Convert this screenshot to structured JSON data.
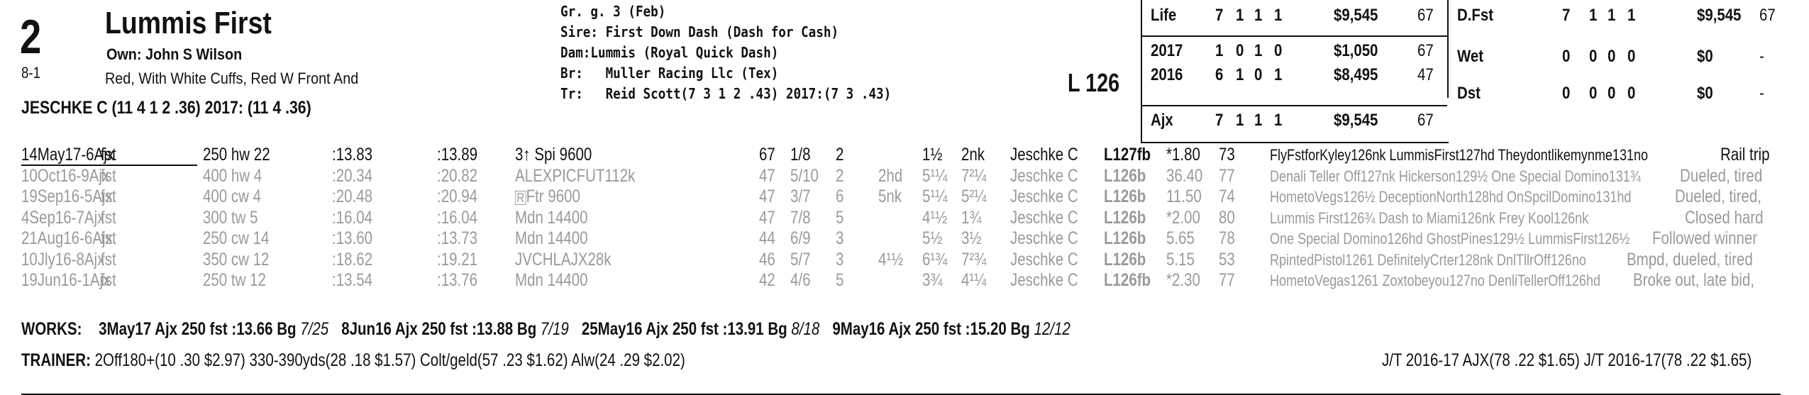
{
  "header": {
    "program_number": "2",
    "horse_name": "Lummis First",
    "owner": "Own: John S Wilson",
    "morning_line": "8-1",
    "silks": "Red, With White Cuffs, Red W Front And",
    "jockey": "JESCHKE C (11 4 1 2 .36) 2017: (11 4 .36)"
  },
  "pedigree": {
    "sex_age": "Gr. g. 3 (Feb)",
    "sire": "Sire: First Down Dash (Dash for Cash)",
    "dam_label": "Dam:",
    "dam": "Lummis (Royal Quick Dash)",
    "breeder_label": "Br:",
    "breeder": "Muller Racing Llc (Tex)",
    "trainer_label": "Tr:",
    "trainer": "Reid Scott(7 3 1 2 .43)  2017:(7 3 .43)"
  },
  "weight": "L 126",
  "stats_left": [
    {
      "label": "Life",
      "st": "7",
      "w": "1",
      "p": "1",
      "s": "1",
      "earn": "$9,545",
      "speed": "67"
    },
    {
      "label": "2017",
      "st": "1",
      "w": "0",
      "p": "1",
      "s": "0",
      "earn": "$1,050",
      "speed": "67"
    },
    {
      "label": "2016",
      "st": "6",
      "w": "1",
      "p": "0",
      "s": "1",
      "earn": "$8,495",
      "speed": "47"
    },
    {
      "label": "Ajx",
      "st": "7",
      "w": "1",
      "p": "1",
      "s": "1",
      "earn": "$9,545",
      "speed": "67"
    }
  ],
  "stats_right": [
    {
      "label": "D.Fst",
      "st": "7",
      "w": "1",
      "p": "1",
      "s": "1",
      "earn": "$9,545",
      "speed": "67"
    },
    {
      "label": "Wet",
      "st": "0",
      "w": "0",
      "p": "0",
      "s": "0",
      "earn": "$0",
      "speed": "-"
    },
    {
      "label": "Dst",
      "st": "0",
      "w": "0",
      "p": "0",
      "s": "0",
      "earn": "$0",
      "speed": "-"
    }
  ],
  "past_performances": [
    {
      "date": "14May17-6Ajx",
      "trk": "fst",
      "dist": "250 hw 22",
      "t1": ":13.83",
      "t2": ":13.89",
      "race": "3↑ Spi 9600",
      "spd": "67",
      "pp": "1/8",
      "st": "2",
      "c1": "",
      "fin": "1½",
      "fin2": "2nk",
      "jockey": "Jeschke C",
      "wt": "L127fb",
      "odds": "*1.80",
      "sr": "73",
      "comment": "FlyFstforKyley126nk LummisFirst127hd Theydontlikemynme131no",
      "trip": "Rail trip"
    },
    {
      "date": "10Oct16-9Ajx",
      "trk": "fst",
      "dist": "400 hw 4",
      "t1": ":20.34",
      "t2": ":20.82",
      "race": "ALEXPICFUT112k",
      "spd": "47",
      "pp": "5/10",
      "st": "2",
      "c1": "2hd",
      "fin": "5¹¼",
      "fin2": "7²¼",
      "jockey": "Jeschke C",
      "wt": "L126b",
      "odds": "36.40",
      "sr": "77",
      "comment": "Denali Teller Off127nk Hickerson129½ One Special Domino131¾",
      "trip": "Dueled, tired"
    },
    {
      "date": "19Sep16-5Ajx",
      "trk": "fst",
      "dist": "400 cw 4",
      "t1": ":20.48",
      "t2": ":20.94",
      "race": "Ftr 9600",
      "race_box": "R",
      "spd": "47",
      "pp": "3/7",
      "st": "6",
      "c1": "5nk",
      "fin": "5¹¼",
      "fin2": "5²¼",
      "jockey": "Jeschke C",
      "wt": "L126b",
      "odds": "11.50",
      "sr": "74",
      "comment": "HometoVegs126½ DeceptionNorth128hd OnSpcilDomino131hd",
      "trip": "Dueled, tired,"
    },
    {
      "date": "4Sep16-7Ajx",
      "trk": "fst",
      "dist": "300 tw 5",
      "t1": ":16.04",
      "t2": ":16.04",
      "race": "Mdn 14400",
      "spd": "47",
      "pp": "7/8",
      "st": "5",
      "c1": "",
      "fin": "4¹½",
      "fin2": "1¾",
      "jockey": "Jeschke C",
      "wt": "L126b",
      "odds": "*2.00",
      "sr": "80",
      "comment": "Lummis First126¾ Dash to Miami126nk Frey Kool126nk",
      "trip": "Closed hard"
    },
    {
      "date": "21Aug16-6Ajx",
      "trk": "fst",
      "dist": "250 cw 14",
      "t1": ":13.60",
      "t2": ":13.73",
      "race": "Mdn 14400",
      "spd": "44",
      "pp": "6/9",
      "st": "3",
      "c1": "",
      "fin": "5½",
      "fin2": "3½",
      "jockey": "Jeschke C",
      "wt": "L126b",
      "odds": "5.65",
      "sr": "78",
      "comment": "One Special Domino126hd GhostPines129½ LummisFirst126½",
      "trip": "Followed winner"
    },
    {
      "date": "10Jly16-8Ajx",
      "trk": "fst",
      "dist": "350 cw 12",
      "t1": ":18.62",
      "t2": ":19.21",
      "race": "JVCHLAJX28k",
      "spd": "46",
      "pp": "5/7",
      "st": "3",
      "c1": "4¹½",
      "fin": "6¹¾",
      "fin2": "7²¾",
      "jockey": "Jeschke C",
      "wt": "L126b",
      "odds": "5.15",
      "sr": "53",
      "comment": "RpintedPistol1261 DefinitelyCrter128nk DnlTllrOff126no",
      "trip": "Bmpd, dueled, tired"
    },
    {
      "date": "19Jun16-1Ajx",
      "trk": "fst",
      "dist": "250 tw 12",
      "t1": ":13.54",
      "t2": ":13.76",
      "race": "Mdn 14400",
      "spd": "42",
      "pp": "4/6",
      "st": "5",
      "c1": "",
      "fin": "3¾",
      "fin2": "4¹¼",
      "jockey": "Jeschke C",
      "wt": "L126fb",
      "odds": "*2.30",
      "sr": "77",
      "comment": "HometoVegas1261 Zoxtobeyou127no DenliTellerOff126hd",
      "trip": "Broke out, late bid,"
    }
  ],
  "works": {
    "label": "WORKS:",
    "items": [
      {
        "date": "3May17",
        "text": "Ajx 250 fst  :13.66 Bg",
        "rank": "7/25"
      },
      {
        "date": "8Jun16",
        "text": "Ajx 250 fst  :13.88 Bg",
        "rank": "7/19"
      },
      {
        "date": "25May16",
        "text": "Ajx 250 fst  :13.91 Bg",
        "rank": "8/18"
      },
      {
        "date": "9May16",
        "text": "Ajx 250 fst  :15.20 Bg",
        "rank": "12/12"
      }
    ]
  },
  "trainer_stats": {
    "label": "TRAINER:",
    "text": "2Off180+(10 .30 $2.97) 330-390yds(28 .18 $1.57) Colt/geld(57 .23 $1.62) Alw(24 .29 $2.02)",
    "jt": "J/T 2016-17 AJX(78 .22 $1.65)  J/T 2016-17(78 .22 $1.65)"
  }
}
